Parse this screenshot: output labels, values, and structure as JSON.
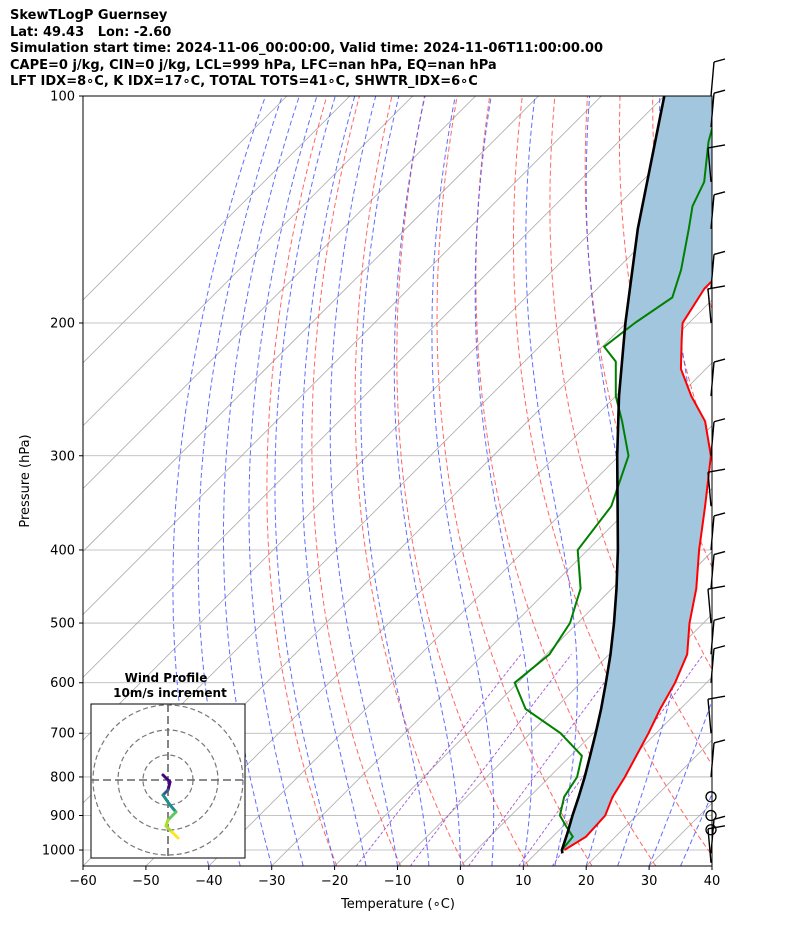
{
  "header": {
    "line1": "SkewTLogP Guernsey",
    "line2": "Lat: 49.43   Lon: -2.60",
    "line3": "Simulation start time: 2024-11-06_00:00:00, Valid time: 2024-11-06T11:00:00.00",
    "line4": "CAPE=0 j/kg, CIN=0 j/kg, LCL=999 hPa, LFC=nan hPa, EQ=nan hPa",
    "line5": "LFT IDX=8∘C, K IDX=17∘C, TOTAL TOTS=41∘C, SHWTR_IDX=6∘C"
  },
  "chart_data": {
    "type": "line",
    "title": "SkewTLogP Guernsey",
    "xlabel": "Temperature (∘C)",
    "ylabel": "Pressure (hPa)",
    "xlim": [
      -60,
      40
    ],
    "ylim": [
      1050,
      100
    ],
    "y_scale": "log",
    "x_ticks": [
      -60,
      -50,
      -40,
      -30,
      -20,
      -10,
      0,
      10,
      20,
      30,
      40
    ],
    "y_ticks": [
      100,
      200,
      300,
      400,
      500,
      600,
      700,
      800,
      900,
      1000
    ],
    "grid": true,
    "colors": {
      "temperature": "#ff0000",
      "dewpoint": "#008000",
      "parcel": "#000000",
      "cape_fill": "#a3c6df",
      "dry_adiabats": "#ff5555",
      "moist_adiabats": "#4455ff",
      "mixing_ratio": "#9944cc",
      "isotherms": "#aaaaaa"
    },
    "series": [
      {
        "name": "temperature",
        "points": [
          [
            1000,
            14
          ],
          [
            960,
            15.3
          ],
          [
            900,
            15
          ],
          [
            850,
            13.2
          ],
          [
            800,
            12
          ],
          [
            700,
            8.8
          ],
          [
            650,
            6.8
          ],
          [
            600,
            5
          ],
          [
            550,
            2.4
          ],
          [
            500,
            -2.2
          ],
          [
            450,
            -6.6
          ],
          [
            400,
            -12.3
          ],
          [
            350,
            -18.3
          ],
          [
            300,
            -25.4
          ],
          [
            270,
            -31.8
          ],
          [
            250,
            -38
          ],
          [
            230,
            -44
          ],
          [
            210,
            -48.6
          ],
          [
            200,
            -51
          ],
          [
            180,
            -53
          ],
          [
            160,
            -53
          ],
          [
            145,
            -56.5
          ],
          [
            130,
            -62
          ],
          [
            120,
            -63
          ],
          [
            100,
            -67.2
          ]
        ]
      },
      {
        "name": "dewpoint",
        "points": [
          [
            1000,
            13.6
          ],
          [
            960,
            13.2
          ],
          [
            930,
            10.5
          ],
          [
            900,
            7.8
          ],
          [
            850,
            5.5
          ],
          [
            800,
            4.4
          ],
          [
            750,
            1.8
          ],
          [
            700,
            -5.2
          ],
          [
            650,
            -14.6
          ],
          [
            600,
            -20.5
          ],
          [
            550,
            -19.5
          ],
          [
            500,
            -21.2
          ],
          [
            450,
            -25
          ],
          [
            400,
            -31.6
          ],
          [
            350,
            -33.2
          ],
          [
            300,
            -38.5
          ],
          [
            270,
            -45
          ],
          [
            250,
            -50
          ],
          [
            225,
            -55.5
          ],
          [
            215,
            -59.7
          ],
          [
            200,
            -58.6
          ],
          [
            185,
            -56.7
          ],
          [
            170,
            -59.7
          ],
          [
            150,
            -65
          ],
          [
            140,
            -68
          ],
          [
            130,
            -70
          ],
          [
            115,
            -75.7
          ],
          [
            100,
            -81
          ]
        ]
      },
      {
        "name": "parcel",
        "points": [
          [
            1010,
            14.2
          ],
          [
            1000,
            13.6
          ],
          [
            950,
            11.8
          ],
          [
            900,
            9.8
          ],
          [
            850,
            7.8
          ],
          [
            800,
            5.6
          ],
          [
            750,
            3.1
          ],
          [
            700,
            0.4
          ],
          [
            650,
            -2.6
          ],
          [
            600,
            -6
          ],
          [
            550,
            -9.8
          ],
          [
            500,
            -14.2
          ],
          [
            450,
            -19.3
          ],
          [
            400,
            -25.2
          ],
          [
            350,
            -32.2
          ],
          [
            300,
            -40.3
          ],
          [
            250,
            -49.5
          ],
          [
            200,
            -60.1
          ],
          [
            150,
            -73.1
          ],
          [
            100,
            -90
          ]
        ]
      }
    ],
    "wind_barbs": {
      "pressure_levels": [
        1040,
        1010,
        940,
        900,
        850,
        800,
        700,
        600,
        550,
        500,
        450,
        400,
        350,
        300,
        250,
        200,
        180,
        150,
        130,
        110,
        100
      ],
      "color": "#000000"
    },
    "inset": {
      "title": "Wind Profile",
      "subtitle": "10m/s increment",
      "rings": 3,
      "hodograph_colors": [
        "#44037f",
        "#3b528b",
        "#21908d",
        "#5ec962",
        "#addc30",
        "#fde725"
      ]
    }
  }
}
